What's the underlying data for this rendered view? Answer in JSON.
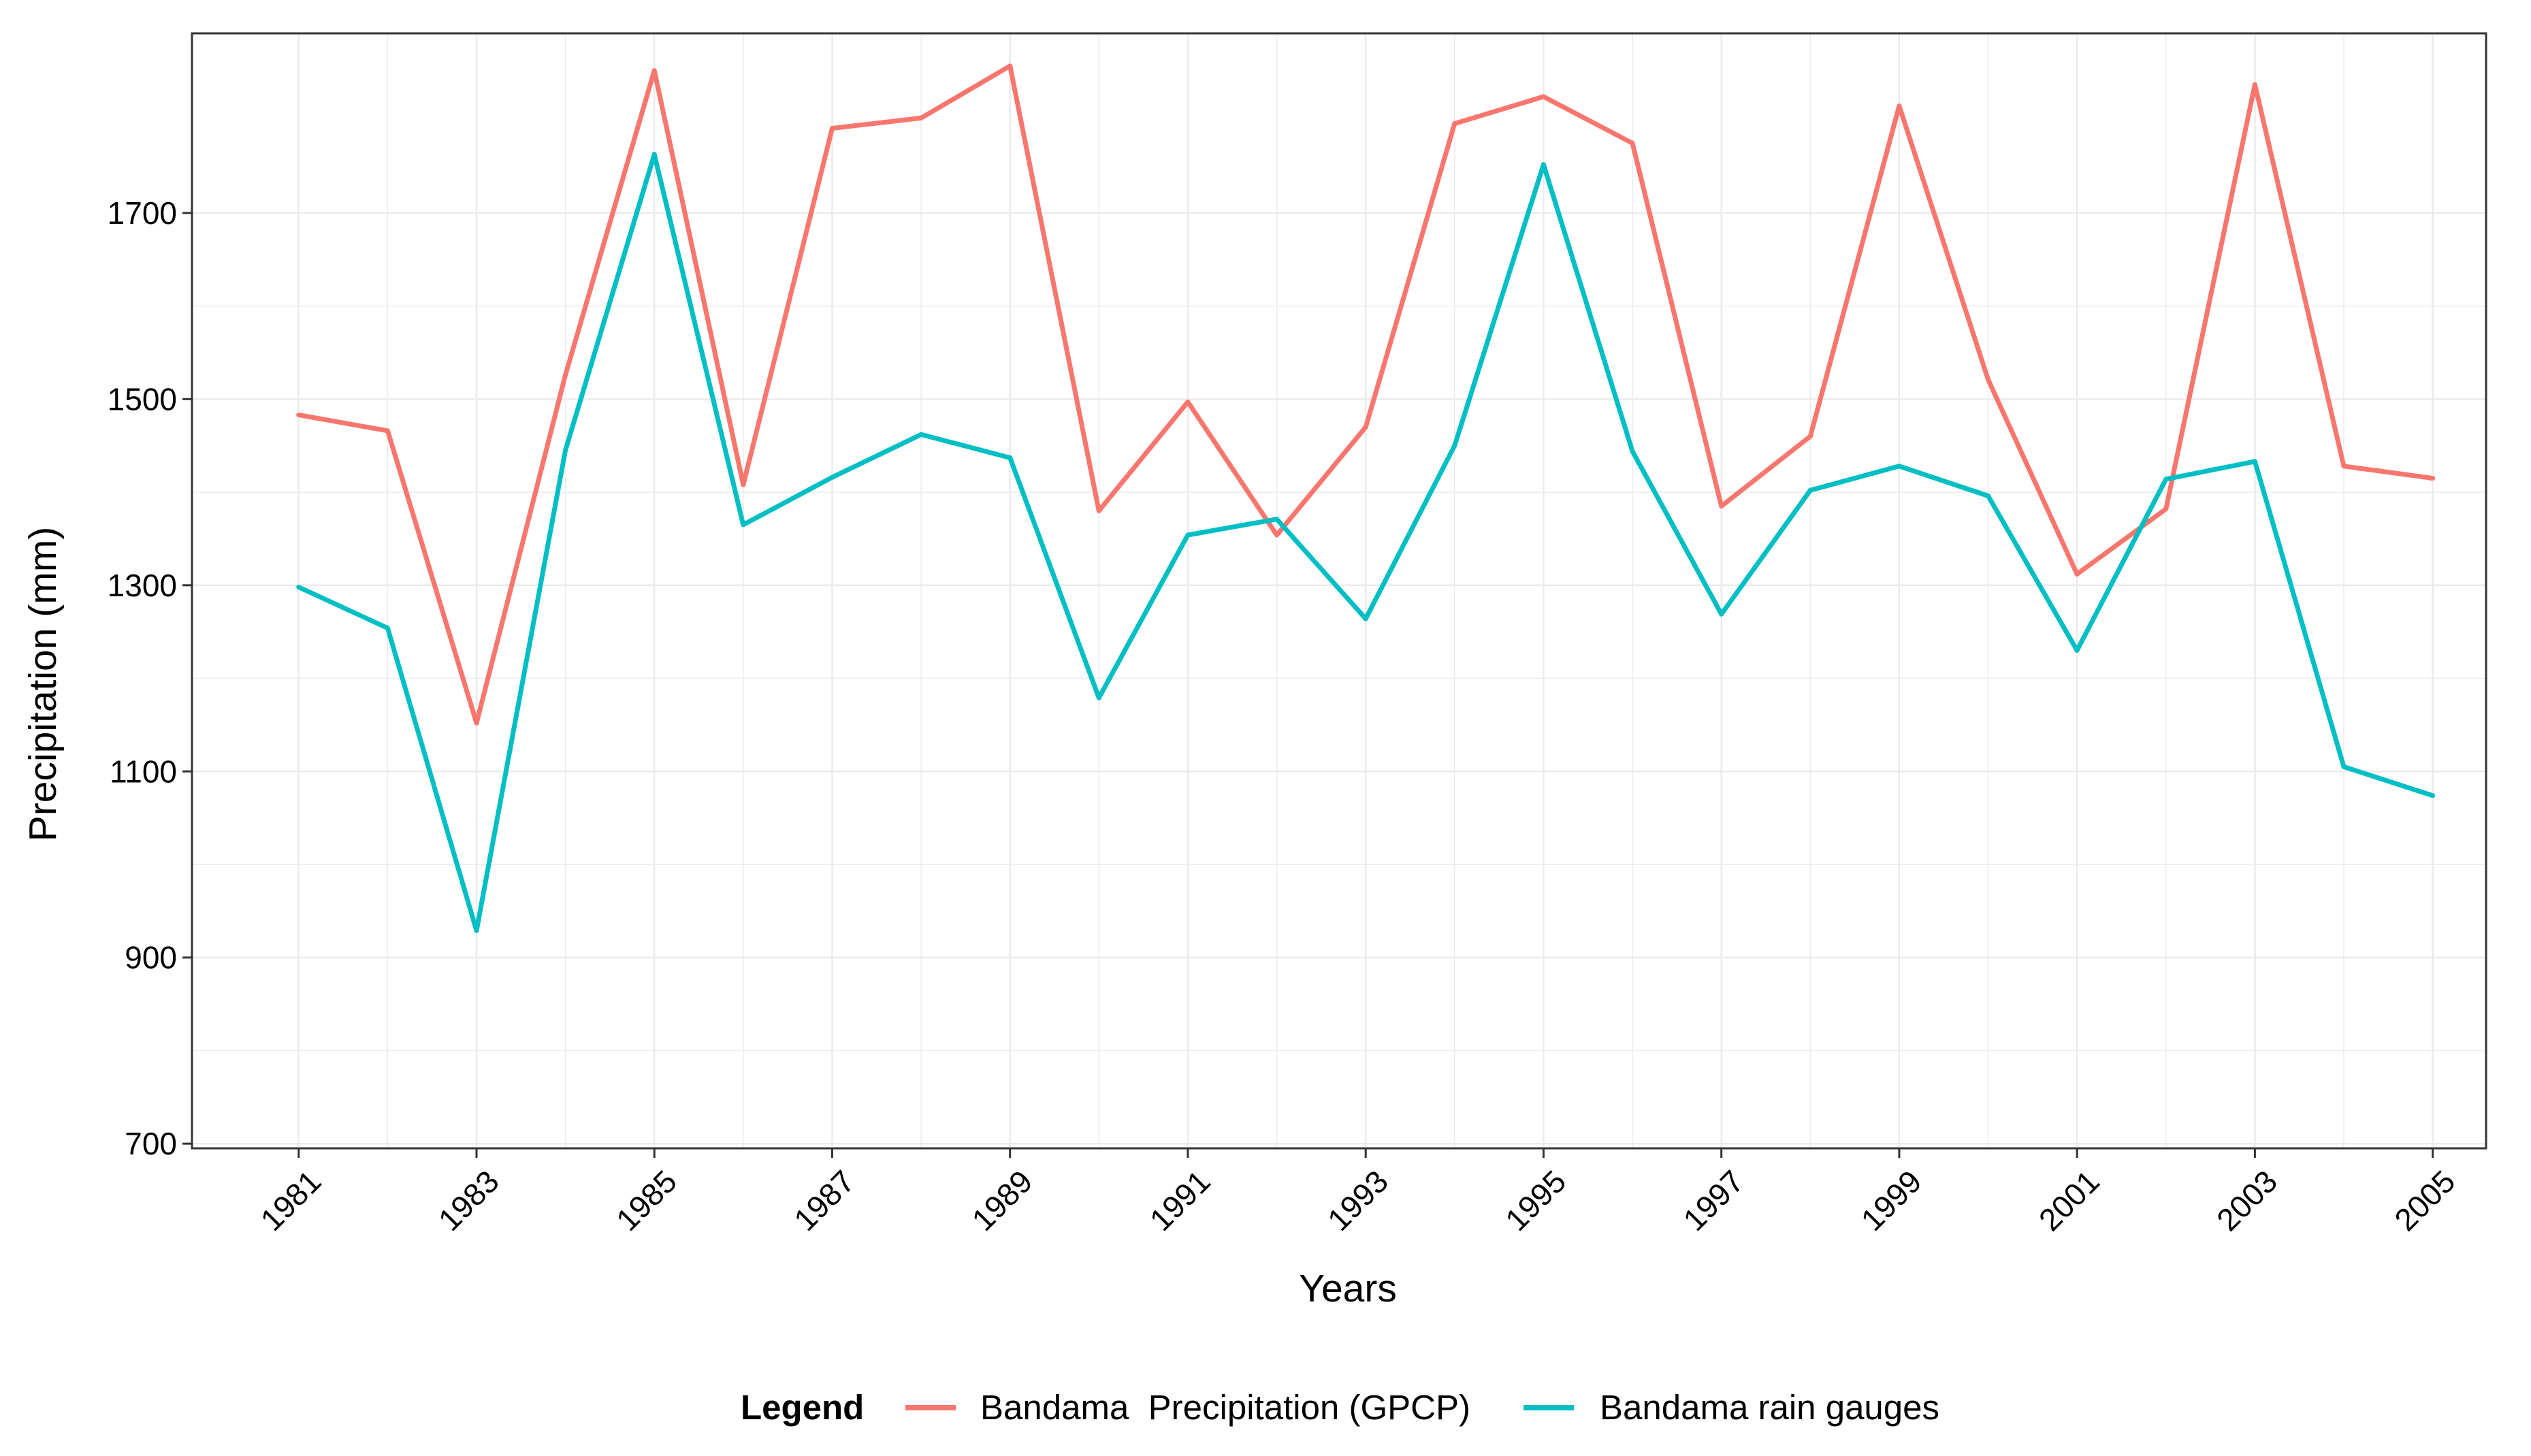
{
  "chart_data": {
    "type": "line",
    "xlabel": "Years",
    "ylabel": "Precipitation (mm)",
    "x": [
      1981,
      1982,
      1983,
      1984,
      1985,
      1986,
      1987,
      1988,
      1989,
      1990,
      1991,
      1992,
      1993,
      1994,
      1995,
      1996,
      1997,
      1998,
      1999,
      2000,
      2001,
      2002,
      2003,
      2004,
      2005
    ],
    "xlim": [
      1979.8,
      2005.6
    ],
    "ylim": [
      695,
      1893
    ],
    "x_ticks": [
      "1981",
      "1983",
      "1985",
      "1987",
      "1989",
      "1991",
      "1993",
      "1995",
      "1997",
      "1999",
      "2001",
      "2003",
      "2005"
    ],
    "y_ticks": [
      "700",
      "900",
      "1100",
      "1300",
      "1500",
      "1700"
    ],
    "grid": true,
    "legend_title": "Legend",
    "legend_position": "bottom",
    "series": [
      {
        "name": "Bandama  Precipitation (GPCP)",
        "color": "#F8766D",
        "values": [
          1483,
          1466,
          1152,
          1526,
          1853,
          1408,
          1791,
          1802,
          1858,
          1380,
          1497,
          1354,
          1470,
          1796,
          1825,
          1775,
          1385,
          1460,
          1815,
          1521,
          1312,
          1382,
          1838,
          1428,
          1415
        ]
      },
      {
        "name": "Bandama rain gauges",
        "color": "#00BFC4",
        "values": [
          1298,
          1254,
          929,
          1445,
          1763,
          1365,
          1416,
          1462,
          1437,
          1179,
          1354,
          1371,
          1264,
          1450,
          1752,
          1444,
          1269,
          1402,
          1428,
          1396,
          1230,
          1414,
          1433,
          1105,
          1074
        ]
      }
    ]
  }
}
